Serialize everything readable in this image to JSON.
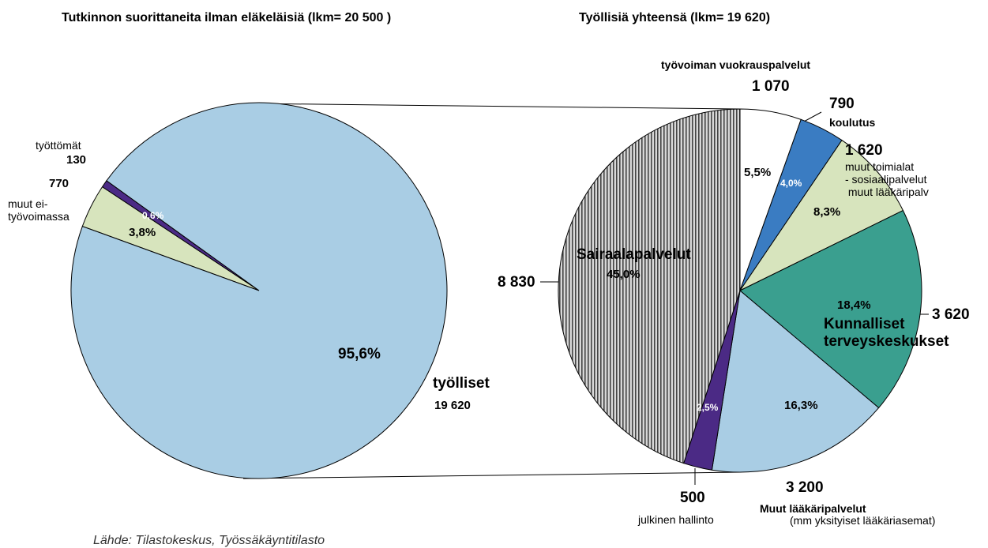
{
  "chart_data": [
    {
      "type": "pie",
      "title": "Tutkinnon suorittaneita ilman eläkeläisiä (lkm= 20 500 )",
      "categories": [
        "muut ei-\ntyövoimassa",
        "työttömät",
        "työlliset"
      ],
      "values": [
        770,
        130,
        19620
      ],
      "value_labels": [
        "770",
        "130",
        "19 620"
      ],
      "percentages": [
        3.8,
        0.6,
        95.6
      ],
      "percentage_labels": [
        "3,8%",
        "0,6%",
        "95,6%"
      ],
      "colors": [
        "#d7e4bd",
        "#4b2a85",
        "#a9cde4"
      ]
    },
    {
      "type": "pie",
      "title": "Työllisiä yhteensä (lkm= 19 620)",
      "categories": [
        "työvoiman vuokrauspalvelut",
        "koulutus",
        "muut toimialat\n- sosiaalipalvelut\n muut lääkäripalv",
        "Kunnalliset\nterveyskeskukset",
        "Muut lääkäripalvelut",
        "julkinen hallinto",
        "Sairaalapalvelut"
      ],
      "values": [
        1070,
        790,
        1620,
        3620,
        3200,
        500,
        8830
      ],
      "value_labels": [
        "1 070",
        "790",
        "1 620",
        "3 620",
        "3 200",
        "500",
        "8 830"
      ],
      "percentages": [
        5.5,
        4.0,
        8.3,
        18.4,
        16.3,
        2.5,
        45.0
      ],
      "percentage_labels": [
        "5,5%",
        "4,0%",
        "8,3%",
        "18,4%",
        "16,3%",
        "2,5%",
        "45,0%"
      ],
      "colors": [
        "#ffffff",
        "#3a7cc2",
        "#d7e4bd",
        "#3a9f8f",
        "#a9cde4",
        "#4b2a85",
        "#a0a0a0"
      ],
      "hatch": [
        false,
        false,
        false,
        false,
        false,
        false,
        true
      ],
      "annotations": [
        "(mm yksityiset lääkäriasemat)"
      ]
    }
  ],
  "source": "Lähde: Tilastokeskus, Työssäkäyntitilasto"
}
